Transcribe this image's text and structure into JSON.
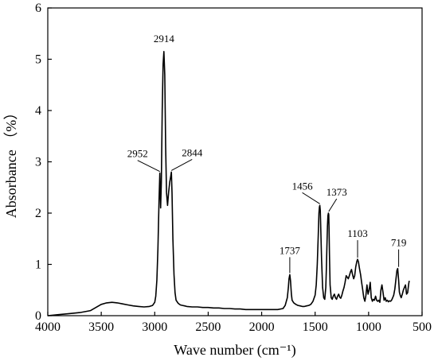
{
  "chart_data": {
    "type": "line",
    "title": "",
    "xlabel": "Wave number (cm⁻¹)",
    "ylabel": "Absorbance （%）",
    "xlim": [
      4000,
      500
    ],
    "ylim": [
      0,
      6
    ],
    "x_reversed": true,
    "xticks": [
      4000,
      3500,
      3000,
      2500,
      2000,
      1500,
      1000,
      500
    ],
    "yticks": [
      0,
      1,
      2,
      3,
      4,
      5,
      6
    ],
    "grid": false,
    "legend": "none",
    "line_color": "#000000",
    "series": [
      {
        "x": [
          4000,
          3900,
          3800,
          3700,
          3600,
          3550,
          3500,
          3450,
          3400,
          3350,
          3300,
          3250,
          3200,
          3150,
          3100,
          3050,
          3020,
          3000,
          2990,
          2980,
          2970,
          2960,
          2952,
          2945,
          2938,
          2930,
          2922,
          2914,
          2906,
          2898,
          2890,
          2880,
          2870,
          2860,
          2850,
          2844,
          2838,
          2830,
          2820,
          2810,
          2800,
          2780,
          2760,
          2740,
          2720,
          2700,
          2650,
          2600,
          2550,
          2500,
          2450,
          2400,
          2350,
          2300,
          2250,
          2200,
          2150,
          2100,
          2050,
          2000,
          1950,
          1900,
          1850,
          1800,
          1780,
          1760,
          1750,
          1744,
          1737,
          1730,
          1722,
          1715,
          1700,
          1680,
          1660,
          1640,
          1620,
          1600,
          1580,
          1560,
          1540,
          1520,
          1500,
          1490,
          1480,
          1470,
          1464,
          1460,
          1456,
          1452,
          1448,
          1440,
          1430,
          1420,
          1410,
          1400,
          1395,
          1390,
          1385,
          1380,
          1376,
          1373,
          1370,
          1366,
          1360,
          1350,
          1340,
          1330,
          1320,
          1310,
          1300,
          1290,
          1280,
          1270,
          1260,
          1250,
          1240,
          1230,
          1220,
          1210,
          1200,
          1190,
          1180,
          1170,
          1160,
          1150,
          1140,
          1130,
          1120,
          1110,
          1103,
          1095,
          1085,
          1075,
          1065,
          1055,
          1045,
          1035,
          1025,
          1015,
          1005,
          995,
          985,
          975,
          965,
          955,
          945,
          935,
          925,
          915,
          905,
          895,
          885,
          875,
          865,
          855,
          845,
          835,
          825,
          815,
          805,
          795,
          785,
          775,
          765,
          755,
          745,
          735,
          728,
          719,
          712,
          705,
          695,
          685,
          675,
          665,
          655,
          645,
          635,
          625,
          620
        ],
        "y": [
          0.0,
          0.02,
          0.04,
          0.06,
          0.1,
          0.16,
          0.22,
          0.25,
          0.26,
          0.25,
          0.23,
          0.21,
          0.19,
          0.18,
          0.17,
          0.18,
          0.2,
          0.26,
          0.38,
          0.7,
          1.3,
          2.25,
          2.78,
          2.1,
          2.6,
          4.0,
          4.9,
          5.15,
          4.7,
          3.3,
          2.4,
          2.15,
          2.4,
          2.6,
          2.72,
          2.8,
          2.4,
          1.5,
          0.8,
          0.45,
          0.3,
          0.24,
          0.21,
          0.2,
          0.19,
          0.18,
          0.17,
          0.17,
          0.16,
          0.16,
          0.15,
          0.15,
          0.14,
          0.14,
          0.13,
          0.13,
          0.12,
          0.12,
          0.12,
          0.12,
          0.12,
          0.12,
          0.12,
          0.14,
          0.2,
          0.35,
          0.55,
          0.72,
          0.8,
          0.68,
          0.42,
          0.3,
          0.25,
          0.22,
          0.2,
          0.19,
          0.18,
          0.18,
          0.19,
          0.2,
          0.22,
          0.28,
          0.4,
          0.6,
          1.0,
          1.6,
          2.0,
          2.12,
          2.15,
          2.05,
          1.75,
          1.1,
          0.55,
          0.35,
          0.32,
          0.55,
          0.9,
          1.35,
          1.75,
          1.95,
          2.0,
          1.97,
          1.7,
          1.2,
          0.6,
          0.35,
          0.32,
          0.38,
          0.42,
          0.35,
          0.32,
          0.38,
          0.42,
          0.36,
          0.34,
          0.4,
          0.48,
          0.55,
          0.65,
          0.78,
          0.75,
          0.72,
          0.78,
          0.85,
          0.9,
          0.8,
          0.72,
          0.78,
          0.95,
          1.06,
          1.1,
          1.05,
          0.92,
          0.8,
          0.65,
          0.5,
          0.35,
          0.28,
          0.4,
          0.6,
          0.42,
          0.5,
          0.65,
          0.35,
          0.28,
          0.32,
          0.3,
          0.38,
          0.3,
          0.28,
          0.3,
          0.26,
          0.5,
          0.6,
          0.45,
          0.3,
          0.35,
          0.28,
          0.3,
          0.27,
          0.29,
          0.28,
          0.3,
          0.35,
          0.4,
          0.52,
          0.7,
          0.88,
          0.92,
          0.68,
          0.46,
          0.4,
          0.35,
          0.42,
          0.5,
          0.55,
          0.6,
          0.42,
          0.45,
          0.62,
          0.68
        ]
      }
    ],
    "annotations": [
      {
        "label": "2914",
        "x": 2914,
        "y": 5.15
      },
      {
        "label": "2952",
        "x": 2952,
        "y": 2.78
      },
      {
        "label": "2844",
        "x": 2844,
        "y": 2.8
      },
      {
        "label": "1737",
        "x": 1737,
        "y": 0.8
      },
      {
        "label": "1456",
        "x": 1456,
        "y": 2.15
      },
      {
        "label": "1373",
        "x": 1373,
        "y": 2.0
      },
      {
        "label": "1103",
        "x": 1103,
        "y": 1.1
      },
      {
        "label": "719",
        "x": 719,
        "y": 0.92
      }
    ]
  }
}
